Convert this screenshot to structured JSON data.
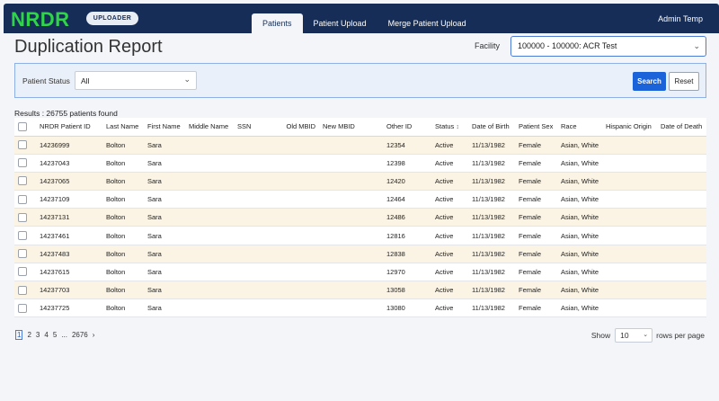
{
  "header": {
    "logo": "NRDR",
    "badge": "UPLOADER",
    "tabs": [
      {
        "label": "Patients",
        "active": true
      },
      {
        "label": "Patient Upload",
        "active": false
      },
      {
        "label": "Merge Patient Upload",
        "active": false
      }
    ],
    "user": "Admin Temp"
  },
  "page": {
    "title": "Duplication Report",
    "facility_label": "Facility",
    "facility_value": "100000 - 100000: ACR Test"
  },
  "filter": {
    "status_label": "Patient Status",
    "status_value": "All",
    "search_label": "Search",
    "reset_label": "Reset"
  },
  "results_text": "Results : 26755 patients found",
  "table": {
    "columns": [
      "NRDR Patient ID",
      "Last Name",
      "First Name",
      "Middle Name",
      "SSN",
      "Old MBID",
      "New MBID",
      "Other ID",
      "Status",
      "Date of Birth",
      "Patient Sex",
      "Race",
      "Hispanic Origin",
      "Date of Death"
    ],
    "rows": [
      [
        "14236999",
        "Bolton",
        "Sara",
        "",
        "",
        "",
        "",
        "12354",
        "Active",
        "11/13/1982",
        "Female",
        "Asian, White",
        "",
        ""
      ],
      [
        "14237043",
        "Bolton",
        "Sara",
        "",
        "",
        "",
        "",
        "12398",
        "Active",
        "11/13/1982",
        "Female",
        "Asian, White",
        "",
        ""
      ],
      [
        "14237065",
        "Bolton",
        "Sara",
        "",
        "",
        "",
        "",
        "12420",
        "Active",
        "11/13/1982",
        "Female",
        "Asian, White",
        "",
        ""
      ],
      [
        "14237109",
        "Bolton",
        "Sara",
        "",
        "",
        "",
        "",
        "12464",
        "Active",
        "11/13/1982",
        "Female",
        "Asian, White",
        "",
        ""
      ],
      [
        "14237131",
        "Bolton",
        "Sara",
        "",
        "",
        "",
        "",
        "12486",
        "Active",
        "11/13/1982",
        "Female",
        "Asian, White",
        "",
        ""
      ],
      [
        "14237461",
        "Bolton",
        "Sara",
        "",
        "",
        "",
        "",
        "12816",
        "Active",
        "11/13/1982",
        "Female",
        "Asian, White",
        "",
        ""
      ],
      [
        "14237483",
        "Bolton",
        "Sara",
        "",
        "",
        "",
        "",
        "12838",
        "Active",
        "11/13/1982",
        "Female",
        "Asian, White",
        "",
        ""
      ],
      [
        "14237615",
        "Bolton",
        "Sara",
        "",
        "",
        "",
        "",
        "12970",
        "Active",
        "11/13/1982",
        "Female",
        "Asian, White",
        "",
        ""
      ],
      [
        "14237703",
        "Bolton",
        "Sara",
        "",
        "",
        "",
        "",
        "13058",
        "Active",
        "11/13/1982",
        "Female",
        "Asian, White",
        "",
        ""
      ],
      [
        "14237725",
        "Bolton",
        "Sara",
        "",
        "",
        "",
        "",
        "13080",
        "Active",
        "11/13/1982",
        "Female",
        "Asian, White",
        "",
        ""
      ]
    ]
  },
  "pagination": {
    "pages": [
      "1",
      "2",
      "3",
      "4",
      "5"
    ],
    "ellipsis": "...",
    "last": "2676",
    "next": "›",
    "show_label": "Show",
    "rows_value": "10",
    "rows_suffix": "rows per page"
  }
}
